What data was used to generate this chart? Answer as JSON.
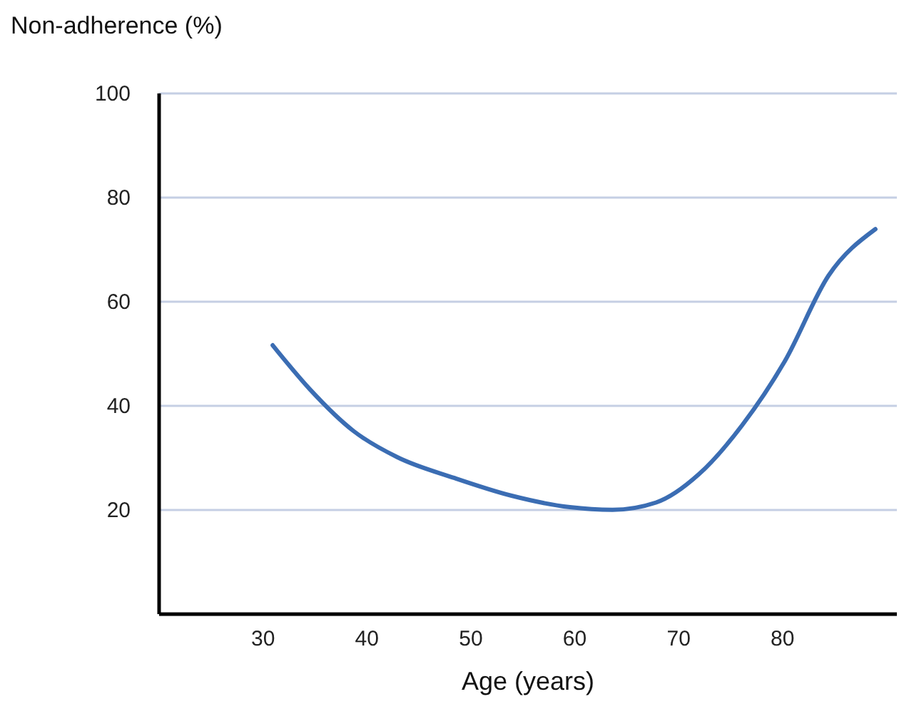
{
  "chart_data": {
    "type": "line",
    "xlabel": "Age (years)",
    "ylabel": "Non-adherence (%)",
    "x": [
      31,
      34.6,
      38.8,
      43,
      48.5,
      54,
      59.6,
      63.7,
      67.9,
      72,
      76.2,
      80.3,
      84.5,
      89
    ],
    "series": [
      {
        "color": "#3b6db3",
        "values": [
          51.5,
          43,
          35,
          30,
          26,
          22.6,
          20.4,
          19.9,
          21.3,
          26.7,
          36.2,
          48.5,
          64.9,
          73.8
        ]
      }
    ],
    "xlim": [
      20,
      91
    ],
    "xticks": [
      30,
      40,
      50,
      60,
      70,
      80
    ],
    "ylim": [
      0,
      100
    ],
    "yticks": [
      20,
      40,
      60,
      80,
      100
    ],
    "grid": "y",
    "marker": "none",
    "line_style": "solid"
  }
}
